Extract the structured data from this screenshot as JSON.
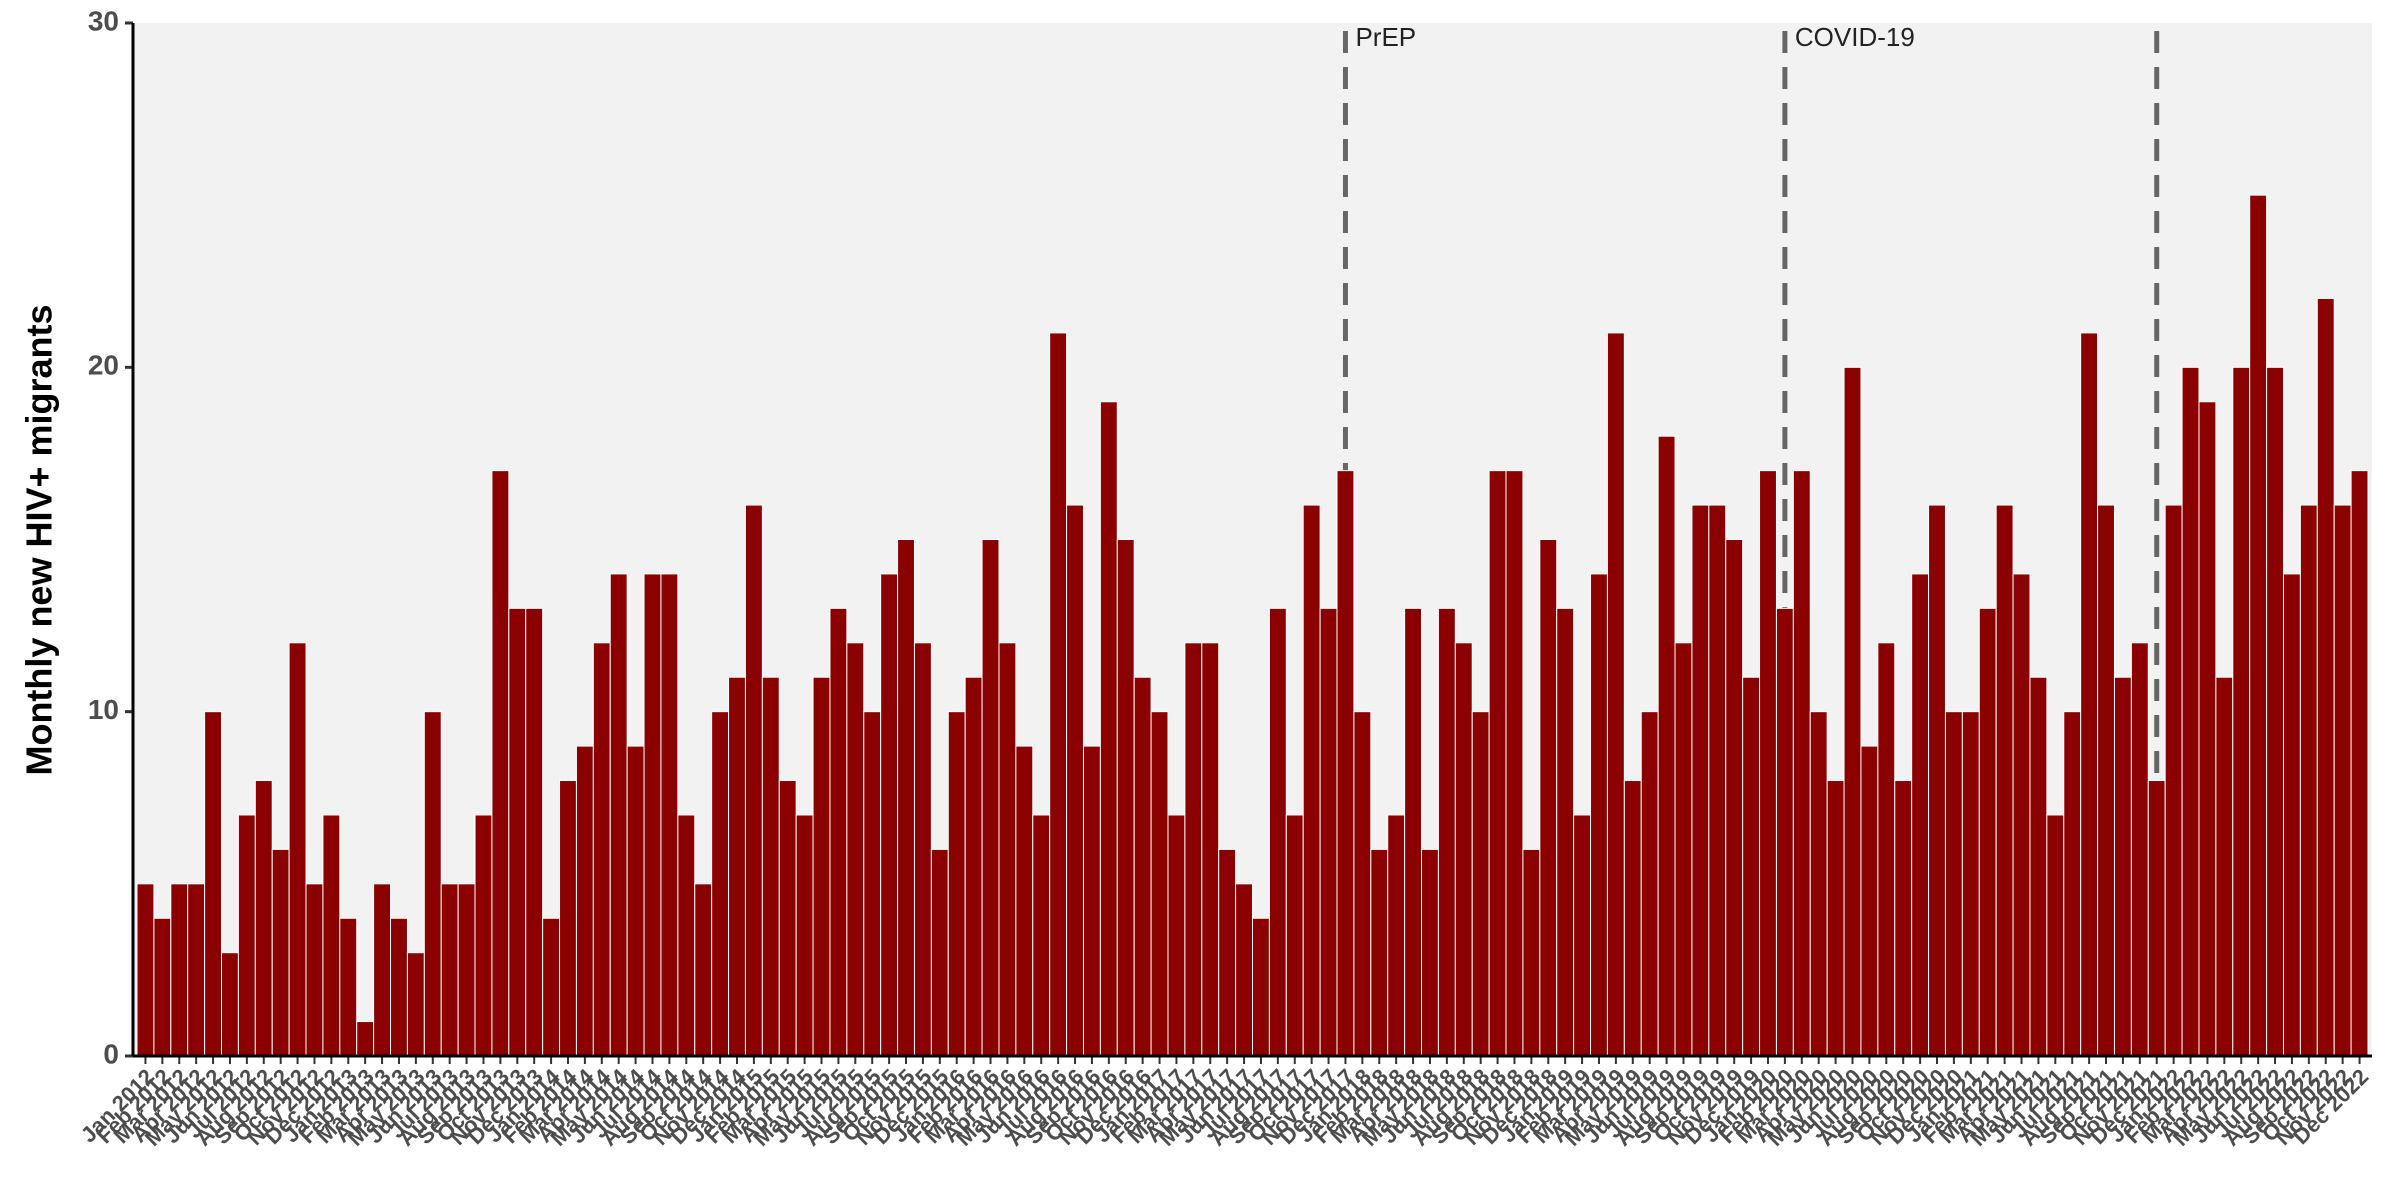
{
  "chart_data": {
    "type": "bar",
    "y_label": "Monthly new HIV+ migrants",
    "categories": [
      "Jan 2012",
      "Feb 2012",
      "Mar 2012",
      "Apr 2012",
      "May 2012",
      "Jun 2012",
      "Jul 2012",
      "Aug 2012",
      "Sep 2012",
      "Oct 2012",
      "Nov 2012",
      "Dec 2012",
      "Jan 2013",
      "Feb 2013",
      "Mar 2013",
      "Apr 2013",
      "May 2013",
      "Jun 2013",
      "Jul 2013",
      "Aug 2013",
      "Sep 2013",
      "Oct 2013",
      "Nov 2013",
      "Dec 2013",
      "Jan 2014",
      "Feb 2014",
      "Mar 2014",
      "Apr 2014",
      "May 2014",
      "Jun 2014",
      "Jul 2014",
      "Aug 2014",
      "Sep 2014",
      "Oct 2014",
      "Nov 2014",
      "Dec 2014",
      "Jan 2015",
      "Feb 2015",
      "Mar 2015",
      "Apr 2015",
      "May 2015",
      "Jun 2015",
      "Jul 2015",
      "Aug 2015",
      "Sep 2015",
      "Oct 2015",
      "Nov 2015",
      "Dec 2015",
      "Jan 2016",
      "Feb 2016",
      "Mar 2016",
      "Apr 2016",
      "May 2016",
      "Jun 2016",
      "Jul 2016",
      "Aug 2016",
      "Sep 2016",
      "Oct 2016",
      "Nov 2016",
      "Dec 2016",
      "Jan 2017",
      "Feb 2017",
      "Mar 2017",
      "Apr 2017",
      "May 2017",
      "Jun 2017",
      "Jul 2017",
      "Aug 2017",
      "Sep 2017",
      "Oct 2017",
      "Nov 2017",
      "Dec 2017",
      "Jan 2018",
      "Feb 2018",
      "Mar 2018",
      "Apr 2018",
      "May 2018",
      "Jun 2018",
      "Jul 2018",
      "Aug 2018",
      "Sep 2018",
      "Oct 2018",
      "Nov 2018",
      "Dec 2018",
      "Jan 2019",
      "Feb 2019",
      "Mar 2019",
      "Apr 2019",
      "May 2019",
      "Jun 2019",
      "Jul 2019",
      "Aug 2019",
      "Sep 2019",
      "Oct 2019",
      "Nov 2019",
      "Dec 2019",
      "Jan 2020",
      "Feb 2020",
      "Mar 2020",
      "Apr 2020",
      "May 2020",
      "Jun 2020",
      "Jul 2020",
      "Aug 2020",
      "Sep 2020",
      "Oct 2020",
      "Nov 2020",
      "Dec 2020",
      "Jan 2021",
      "Feb 2021",
      "Mar 2021",
      "Apr 2021",
      "May 2021",
      "Jun 2021",
      "Jul 2021",
      "Aug 2021",
      "Sep 2021",
      "Oct 2021",
      "Nov 2021",
      "Dec 2021",
      "Jan 2022",
      "Feb 2022",
      "Mar 2022",
      "Apr 2022",
      "May 2022",
      "Jun 2022",
      "Jul 2022",
      "Aug 2022",
      "Sep 2022",
      "Oct 2022",
      "Nov 2022",
      "Dec 2022"
    ],
    "values": [
      5,
      4,
      5,
      5,
      10,
      3,
      7,
      8,
      6,
      12,
      5,
      7,
      4,
      1,
      5,
      4,
      3,
      10,
      5,
      5,
      7,
      17,
      13,
      13,
      4,
      8,
      9,
      12,
      14,
      9,
      14,
      14,
      7,
      5,
      10,
      11,
      16,
      11,
      8,
      7,
      11,
      13,
      12,
      10,
      14,
      15,
      12,
      6,
      10,
      11,
      15,
      12,
      9,
      7,
      21,
      16,
      9,
      19,
      15,
      11,
      10,
      7,
      12,
      12,
      6,
      5,
      4,
      13,
      7,
      16,
      13,
      17,
      10,
      6,
      7,
      13,
      6,
      13,
      12,
      10,
      17,
      17,
      6,
      15,
      13,
      7,
      14,
      21,
      8,
      10,
      18,
      12,
      16,
      16,
      15,
      11,
      17,
      13,
      17,
      10,
      8,
      20,
      9,
      12,
      8,
      14,
      16,
      10,
      10,
      13,
      16,
      14,
      11,
      7,
      10,
      21,
      16,
      11,
      12,
      8,
      16,
      20,
      19,
      11,
      20,
      25,
      20,
      14,
      16,
      22,
      16,
      17
    ],
    "color": "#8b0000",
    "ylim": [
      0,
      30
    ],
    "yticks": [
      0,
      10,
      20,
      30
    ],
    "vlines": [
      {
        "x": "Dec 2017",
        "label": "PrEP"
      },
      {
        "x": "Feb 2020",
        "label": "COVID-19"
      },
      {
        "x": "Dec 2021"
      }
    ]
  }
}
